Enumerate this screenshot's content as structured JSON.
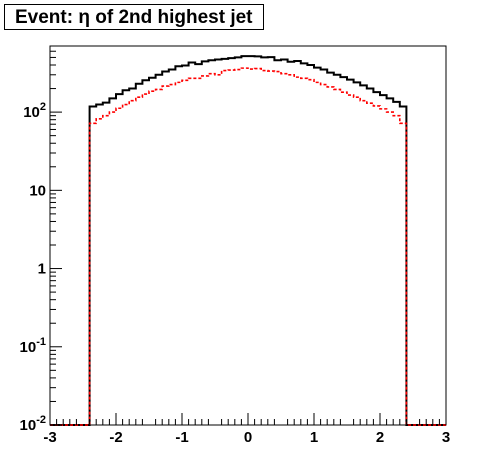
{
  "chart_data": {
    "type": "line",
    "title": "Event: η of 2nd highest jet",
    "xlabel": "",
    "ylabel": "",
    "xlim": [
      -3,
      3
    ],
    "ylim": [
      0.01,
      700
    ],
    "yscale": "log",
    "x_ticks": [
      "-3",
      "-2",
      "-1",
      "0",
      "1",
      "2",
      "3"
    ],
    "y_ticks": [
      {
        "value": 0.01,
        "base": "10",
        "exp": "-2"
      },
      {
        "value": 0.1,
        "base": "10",
        "exp": "-1"
      },
      {
        "value": 1,
        "base": "1",
        "exp": ""
      },
      {
        "value": 10,
        "base": "10",
        "exp": ""
      },
      {
        "value": 100,
        "base": "10",
        "exp": "2"
      }
    ],
    "bin_edges": [
      -3.0,
      -2.4,
      -2.3,
      -2.2,
      -2.1,
      -2.0,
      -1.9,
      -1.8,
      -1.7,
      -1.6,
      -1.5,
      -1.4,
      -1.3,
      -1.2,
      -1.1,
      -1.0,
      -0.9,
      -0.8,
      -0.7,
      -0.6,
      -0.5,
      -0.4,
      -0.3,
      -0.2,
      -0.1,
      0.0,
      0.1,
      0.2,
      0.3,
      0.4,
      0.5,
      0.6,
      0.7,
      0.8,
      0.9,
      1.0,
      1.1,
      1.2,
      1.3,
      1.4,
      1.5,
      1.6,
      1.7,
      1.8,
      1.9,
      2.0,
      2.1,
      2.2,
      2.3,
      2.4,
      3.0
    ],
    "series": [
      {
        "color": "#000000",
        "style": "solid",
        "values": [
          0.01,
          118,
          125,
          132,
          150,
          170,
          190,
          200,
          230,
          255,
          275,
          300,
          330,
          350,
          385,
          395,
          430,
          410,
          445,
          460,
          470,
          480,
          490,
          500,
          520,
          520,
          515,
          500,
          505,
          460,
          470,
          440,
          450,
          420,
          400,
          370,
          350,
          320,
          300,
          280,
          260,
          240,
          220,
          200,
          180,
          165,
          150,
          135,
          118,
          0.01
        ]
      },
      {
        "color": "#ff0000",
        "style": "dashed",
        "values": [
          0.01,
          72,
          82,
          90,
          100,
          112,
          125,
          140,
          155,
          170,
          185,
          195,
          215,
          225,
          240,
          255,
          270,
          270,
          290,
          310,
          300,
          340,
          345,
          350,
          365,
          355,
          360,
          340,
          335,
          330,
          310,
          300,
          280,
          270,
          260,
          240,
          225,
          210,
          195,
          180,
          165,
          155,
          140,
          130,
          120,
          110,
          100,
          90,
          72,
          0.01
        ]
      }
    ]
  }
}
